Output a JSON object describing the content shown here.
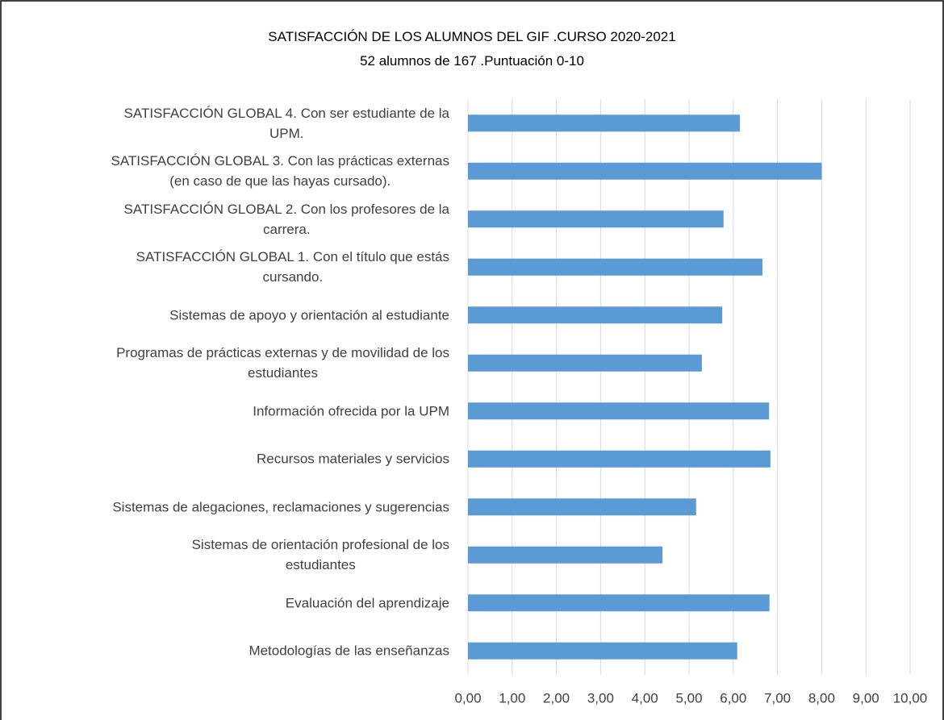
{
  "chart_data": {
    "type": "hbar",
    "title": "SATISFACCIÓN DE LOS ALUMNOS DEL GIF .CURSO 2020-2021",
    "subtitle": "52 alumnos de 167 .Puntuación 0-10",
    "categories": [
      "SATISFACCIÓN GLOBAL 4. Con ser estudiante de la\nUPM.",
      "SATISFACCIÓN GLOBAL 3. Con las prácticas externas\n(en caso de que las hayas cursado).",
      "SATISFACCIÓN GLOBAL 2. Con los profesores de la\ncarrera.",
      "SATISFACCIÓN GLOBAL 1. Con el título que estás\ncursando.",
      "Sistemas de apoyo y orientación al estudiante",
      "Programas de prácticas externas y de movilidad de los\nestudiantes",
      "Información ofrecida por la UPM",
      "Recursos materiales y servicios",
      "Sistemas de alegaciones, reclamaciones y sugerencias",
      "Sistemas de orientación profesional de los\nestudiantes",
      "Evaluación del aprendizaje",
      "Metodologías de las enseñanzas"
    ],
    "values": [
      6.15,
      8.0,
      5.78,
      6.66,
      5.75,
      5.29,
      6.81,
      6.84,
      5.16,
      4.4,
      6.82,
      6.09
    ],
    "color": "#5b9bd5",
    "xlim": [
      0,
      10
    ],
    "xticks": [
      {
        "value": 0,
        "label": "0,00"
      },
      {
        "value": 1,
        "label": "1,00"
      },
      {
        "value": 2,
        "label": "2,00"
      },
      {
        "value": 3,
        "label": "3,00"
      },
      {
        "value": 4,
        "label": "4,00"
      },
      {
        "value": 5,
        "label": "5,00"
      },
      {
        "value": 6,
        "label": "6,00"
      },
      {
        "value": 7,
        "label": "7,00"
      },
      {
        "value": 8,
        "label": "8,00"
      },
      {
        "value": 9,
        "label": "9,00"
      },
      {
        "value": 10,
        "label": "10,00"
      }
    ],
    "grid": true
  }
}
